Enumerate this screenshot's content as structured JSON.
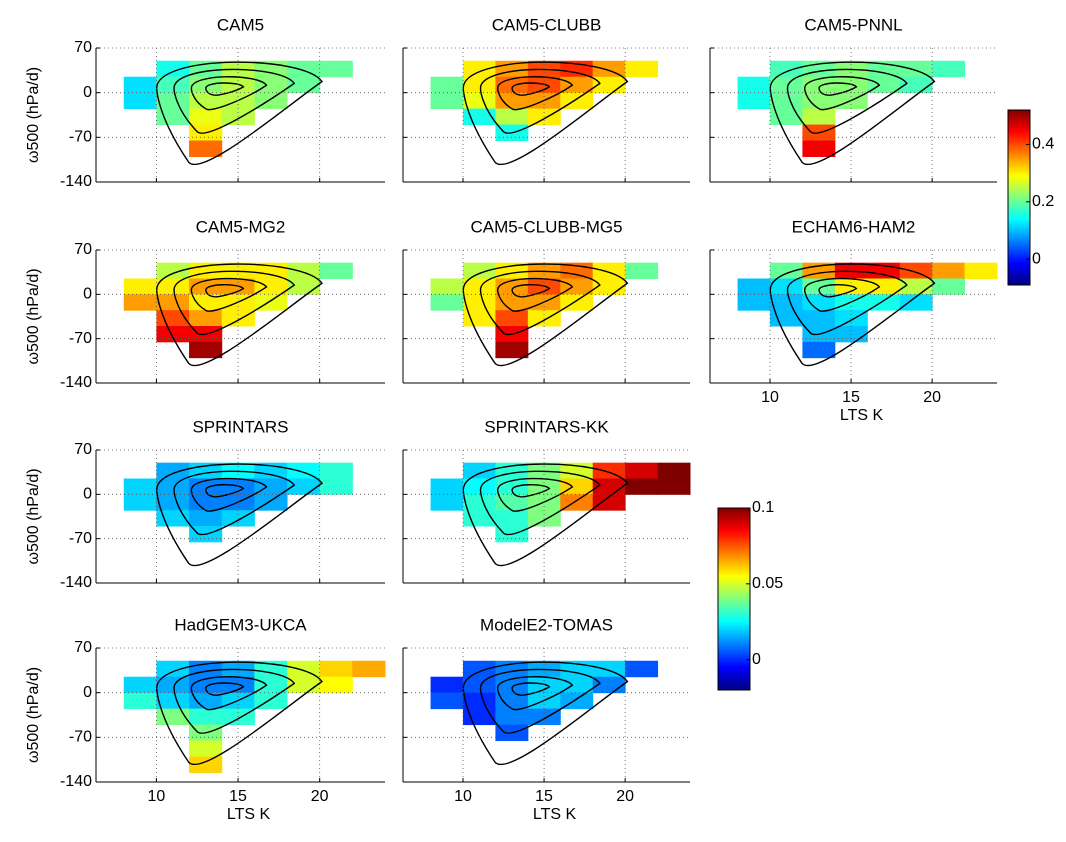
{
  "chart_data": [
    {
      "type": "heatmap",
      "title": "CAM5",
      "ylabel": "ω500  (hPa/d)",
      "xlim": [
        6.3,
        24
      ],
      "ylim": [
        -140,
        70
      ],
      "xticks": [
        10,
        15,
        20
      ],
      "yticks": [
        -140,
        -70,
        0,
        70
      ],
      "grid": true,
      "clim": [
        -0.09,
        0.52
      ],
      "x_bins": [
        8,
        10,
        12,
        14,
        16,
        18,
        20,
        22,
        24
      ],
      "y_bins": [
        50,
        25,
        0,
        -25,
        -50,
        -75,
        -100,
        -125
      ],
      "values": [
        [
          null,
          0.15,
          0.2,
          0.25,
          0.22,
          0.2,
          0.2,
          null
        ],
        [
          0.12,
          0.18,
          0.22,
          0.25,
          0.22,
          0.2,
          null,
          null
        ],
        [
          0.12,
          0.2,
          0.25,
          0.25,
          0.22,
          null,
          null,
          null
        ],
        [
          null,
          0.2,
          0.28,
          0.25,
          null,
          null,
          null,
          null
        ],
        [
          null,
          null,
          0.3,
          null,
          null,
          null,
          null,
          null
        ],
        [
          null,
          null,
          0.38,
          null,
          null,
          null,
          null,
          null
        ],
        [
          null,
          null,
          null,
          null,
          null,
          null,
          null,
          null
        ]
      ]
    },
    {
      "type": "heatmap",
      "title": "CAM5-CLUBB",
      "xlim": [
        6.3,
        24
      ],
      "ylim": [
        -140,
        70
      ],
      "xticks": [
        10,
        15,
        20
      ],
      "yticks": [
        -140,
        -70,
        0,
        70
      ],
      "grid": true,
      "clim": [
        -0.09,
        0.52
      ],
      "x_bins": [
        8,
        10,
        12,
        14,
        16,
        18,
        20,
        22,
        24
      ],
      "y_bins": [
        50,
        25,
        0,
        -25,
        -50,
        -75,
        -100,
        -125
      ],
      "values": [
        [
          null,
          0.3,
          0.35,
          0.4,
          0.42,
          0.35,
          0.3,
          null
        ],
        [
          0.2,
          0.3,
          0.38,
          0.4,
          0.35,
          0.3,
          null,
          null
        ],
        [
          0.2,
          0.28,
          0.35,
          0.35,
          0.3,
          null,
          null,
          null
        ],
        [
          null,
          0.15,
          0.25,
          0.3,
          null,
          null,
          null,
          null
        ],
        [
          null,
          null,
          0.15,
          null,
          null,
          null,
          null,
          null
        ],
        [
          null,
          null,
          null,
          null,
          null,
          null,
          null,
          null
        ],
        [
          null,
          null,
          null,
          null,
          null,
          null,
          null,
          null
        ]
      ]
    },
    {
      "type": "heatmap",
      "title": "CAM5-PNNL",
      "xlim": [
        6.3,
        24
      ],
      "ylim": [
        -140,
        70
      ],
      "xticks": [
        10,
        15,
        20
      ],
      "yticks": [
        -140,
        -70,
        0,
        70
      ],
      "grid": true,
      "clim": [
        -0.09,
        0.52
      ],
      "x_bins": [
        8,
        10,
        12,
        14,
        16,
        18,
        20,
        22,
        24
      ],
      "y_bins": [
        50,
        25,
        0,
        -25,
        -50,
        -75,
        -100,
        -125
      ],
      "values": [
        [
          null,
          0.18,
          0.2,
          0.22,
          0.2,
          0.2,
          0.18,
          null
        ],
        [
          0.15,
          0.2,
          0.22,
          0.22,
          0.2,
          0.18,
          null,
          null
        ],
        [
          0.15,
          0.2,
          0.22,
          0.22,
          null,
          null,
          null,
          null
        ],
        [
          null,
          0.2,
          0.25,
          null,
          null,
          null,
          null,
          null
        ],
        [
          null,
          null,
          0.4,
          null,
          null,
          null,
          null,
          null
        ],
        [
          null,
          null,
          0.45,
          null,
          null,
          null,
          null,
          null
        ],
        [
          null,
          null,
          null,
          null,
          null,
          null,
          null,
          null
        ]
      ]
    },
    {
      "type": "heatmap",
      "title": "CAM5-MG2",
      "ylabel": "ω500  (hPa/d)",
      "xlim": [
        6.3,
        24
      ],
      "ylim": [
        -140,
        70
      ],
      "xticks": [
        10,
        15,
        20
      ],
      "yticks": [
        -140,
        -70,
        0,
        70
      ],
      "grid": true,
      "clim": [
        -0.09,
        0.52
      ],
      "x_bins": [
        8,
        10,
        12,
        14,
        16,
        18,
        20,
        22,
        24
      ],
      "y_bins": [
        50,
        25,
        0,
        -25,
        -50,
        -75,
        -100,
        -125
      ],
      "values": [
        [
          null,
          0.25,
          0.3,
          0.3,
          0.3,
          0.25,
          0.2,
          null
        ],
        [
          0.3,
          0.3,
          0.35,
          0.35,
          0.3,
          0.25,
          null,
          null
        ],
        [
          0.35,
          0.35,
          0.3,
          0.3,
          0.28,
          null,
          null,
          null
        ],
        [
          null,
          0.4,
          0.35,
          0.3,
          null,
          null,
          null,
          null
        ],
        [
          null,
          0.45,
          0.45,
          null,
          null,
          null,
          null,
          null
        ],
        [
          null,
          null,
          0.5,
          null,
          null,
          null,
          null,
          null
        ],
        [
          null,
          null,
          null,
          null,
          null,
          null,
          null,
          null
        ]
      ]
    },
    {
      "type": "heatmap",
      "title": "CAM5-CLUBB-MG5",
      "xlim": [
        6.3,
        24
      ],
      "ylim": [
        -140,
        70
      ],
      "xticks": [
        10,
        15,
        20
      ],
      "yticks": [
        -140,
        -70,
        0,
        70
      ],
      "grid": true,
      "clim": [
        -0.09,
        0.52
      ],
      "x_bins": [
        8,
        10,
        12,
        14,
        16,
        18,
        20,
        22,
        24
      ],
      "y_bins": [
        50,
        25,
        0,
        -25,
        -50,
        -75,
        -100,
        -125
      ],
      "values": [
        [
          null,
          0.25,
          0.3,
          0.35,
          0.38,
          0.3,
          0.2,
          null
        ],
        [
          0.25,
          0.3,
          0.35,
          0.4,
          0.35,
          0.3,
          null,
          null
        ],
        [
          0.2,
          0.3,
          0.35,
          0.35,
          0.3,
          null,
          null,
          null
        ],
        [
          null,
          0.3,
          0.4,
          0.3,
          null,
          null,
          null,
          null
        ],
        [
          null,
          null,
          0.45,
          null,
          null,
          null,
          null,
          null
        ],
        [
          null,
          null,
          0.5,
          null,
          null,
          null,
          null,
          null
        ],
        [
          null,
          null,
          null,
          null,
          null,
          null,
          null,
          null
        ]
      ]
    },
    {
      "type": "heatmap",
      "title": "ECHAM6-HAM2",
      "xlabel": "LTS  K",
      "xlim": [
        6.3,
        24
      ],
      "ylim": [
        -140,
        70
      ],
      "xticks": [
        10,
        15,
        20
      ],
      "yticks": [
        -140,
        -70,
        0,
        70
      ],
      "grid": true,
      "clim": [
        -0.09,
        0.52
      ],
      "x_bins": [
        8,
        10,
        12,
        14,
        16,
        18,
        20,
        22,
        24
      ],
      "y_bins": [
        50,
        25,
        0,
        -25,
        -50,
        -75,
        -100,
        -125
      ],
      "values": [
        [
          null,
          0.2,
          0.35,
          0.45,
          0.45,
          0.4,
          0.35,
          0.3
        ],
        [
          0.1,
          0.12,
          0.2,
          0.3,
          0.3,
          0.25,
          0.2,
          null
        ],
        [
          0.1,
          0.1,
          0.12,
          0.15,
          0.15,
          0.12,
          null,
          null
        ],
        [
          null,
          0.1,
          0.1,
          0.12,
          null,
          null,
          null,
          null
        ],
        [
          null,
          null,
          0.1,
          0.1,
          null,
          null,
          null,
          null
        ],
        [
          null,
          null,
          0.05,
          null,
          null,
          null,
          null,
          null
        ],
        [
          null,
          null,
          null,
          null,
          null,
          null,
          null,
          null
        ]
      ]
    },
    {
      "type": "heatmap",
      "title": "SPRINTARS",
      "ylabel": "ω500  (hPa/d)",
      "xlim": [
        6.3,
        24
      ],
      "ylim": [
        -140,
        70
      ],
      "xticks": [
        10,
        15,
        20
      ],
      "yticks": [
        -140,
        -70,
        0,
        70
      ],
      "grid": true,
      "clim": [
        -0.02,
        0.1
      ],
      "x_bins": [
        8,
        10,
        12,
        14,
        16,
        18,
        20,
        22,
        24
      ],
      "y_bins": [
        50,
        25,
        0,
        -25,
        -50,
        -75,
        -100,
        -125
      ],
      "values": [
        [
          null,
          0.015,
          0.02,
          0.025,
          0.02,
          0.025,
          0.03,
          null
        ],
        [
          0.02,
          0.015,
          0.01,
          0.01,
          0.015,
          0.02,
          0.03,
          null
        ],
        [
          0.02,
          0.015,
          0.01,
          0.01,
          0.015,
          null,
          null,
          null
        ],
        [
          null,
          0.02,
          0.015,
          0.02,
          null,
          null,
          null,
          null
        ],
        [
          null,
          null,
          0.02,
          null,
          null,
          null,
          null,
          null
        ],
        [
          null,
          null,
          null,
          null,
          null,
          null,
          null,
          null
        ],
        [
          null,
          null,
          null,
          null,
          null,
          null,
          null,
          null
        ]
      ]
    },
    {
      "type": "heatmap",
      "title": "SPRINTARS-KK",
      "xlim": [
        6.3,
        24
      ],
      "ylim": [
        -140,
        70
      ],
      "xticks": [
        10,
        15,
        20
      ],
      "yticks": [
        -140,
        -70,
        0,
        70
      ],
      "grid": true,
      "clim": [
        -0.02,
        0.1
      ],
      "x_bins": [
        8,
        10,
        12,
        14,
        16,
        18,
        20,
        22,
        24
      ],
      "y_bins": [
        50,
        25,
        0,
        -25,
        -50,
        -75,
        -100,
        -125
      ],
      "values": [
        [
          null,
          0.02,
          0.03,
          0.04,
          0.05,
          0.08,
          0.09,
          0.1
        ],
        [
          0.02,
          0.025,
          0.03,
          0.04,
          0.06,
          0.09,
          0.1,
          0.1
        ],
        [
          0.02,
          0.03,
          0.035,
          0.04,
          0.07,
          0.09,
          null,
          null
        ],
        [
          null,
          0.03,
          0.03,
          0.04,
          null,
          null,
          null,
          null
        ],
        [
          null,
          null,
          0.03,
          null,
          null,
          null,
          null,
          null
        ],
        [
          null,
          null,
          null,
          null,
          null,
          null,
          null,
          null
        ],
        [
          null,
          null,
          null,
          null,
          null,
          null,
          null,
          null
        ]
      ]
    },
    {
      "type": "heatmap",
      "title": "HadGEM3-UKCA",
      "ylabel": "ω500  (hPa/d)",
      "xlabel": "LTS  K",
      "xlim": [
        6.3,
        24
      ],
      "ylim": [
        -140,
        70
      ],
      "xticks": [
        10,
        15,
        20
      ],
      "yticks": [
        -140,
        -70,
        0,
        70
      ],
      "grid": true,
      "clim": [
        -0.02,
        0.1
      ],
      "x_bins": [
        8,
        10,
        12,
        14,
        16,
        18,
        20,
        22,
        24
      ],
      "y_bins": [
        50,
        25,
        0,
        -25,
        -50,
        -75,
        -100,
        -125
      ],
      "values": [
        [
          null,
          0.02,
          0.01,
          0.015,
          0.03,
          0.05,
          0.06,
          0.065
        ],
        [
          0.02,
          0.015,
          0.01,
          0.01,
          0.03,
          0.05,
          0.055,
          null
        ],
        [
          0.03,
          0.02,
          0.015,
          0.02,
          0.03,
          null,
          null,
          null
        ],
        [
          null,
          0.04,
          0.03,
          0.03,
          null,
          null,
          null,
          null
        ],
        [
          null,
          null,
          0.04,
          null,
          null,
          null,
          null,
          null
        ],
        [
          null,
          null,
          0.05,
          null,
          null,
          null,
          null,
          null
        ],
        [
          null,
          null,
          0.06,
          null,
          null,
          null,
          null,
          null
        ]
      ]
    },
    {
      "type": "heatmap",
      "title": "ModelE2-TOMAS",
      "xlabel": "LTS  K",
      "xlim": [
        6.3,
        24
      ],
      "ylim": [
        -140,
        70
      ],
      "xticks": [
        10,
        15,
        20
      ],
      "yticks": [
        -140,
        -70,
        0,
        70
      ],
      "grid": true,
      "clim": [
        -0.02,
        0.1
      ],
      "x_bins": [
        8,
        10,
        12,
        14,
        16,
        18,
        20,
        22,
        24
      ],
      "y_bins": [
        50,
        25,
        0,
        -25,
        -50,
        -75,
        -100,
        -125
      ],
      "values": [
        [
          null,
          0.005,
          0.01,
          0.015,
          0.02,
          0.02,
          0.005,
          null
        ],
        [
          0,
          0.005,
          0.01,
          0.02,
          0.02,
          0.01,
          null,
          null
        ],
        [
          0.005,
          0,
          0.01,
          0.02,
          0.015,
          null,
          null,
          null
        ],
        [
          null,
          0,
          0.01,
          0.01,
          null,
          null,
          null,
          null
        ],
        [
          null,
          null,
          0.005,
          null,
          null,
          null,
          null,
          null
        ],
        [
          null,
          null,
          null,
          null,
          null,
          null,
          null,
          null
        ],
        [
          null,
          null,
          null,
          null,
          null,
          null,
          null,
          null
        ]
      ]
    },
    {
      "type": "colorbar",
      "clim": [
        -0.09,
        0.52
      ],
      "cticks": [
        0,
        0.2,
        0.4
      ]
    },
    {
      "type": "colorbar",
      "clim": [
        -0.02,
        0.1
      ],
      "cticks": [
        0,
        0.05,
        0.1
      ]
    }
  ]
}
